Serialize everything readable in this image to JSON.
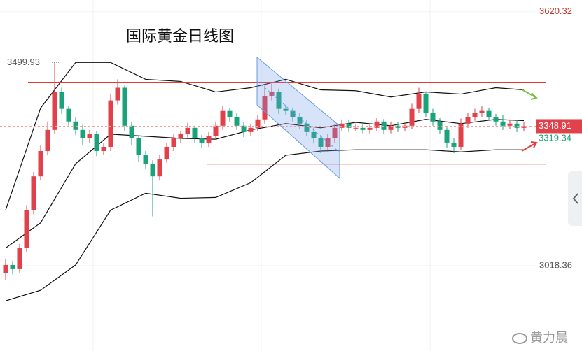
{
  "chart_data": {
    "type": "candlestick",
    "title": "国际黄金日线图",
    "open": [
      3000,
      3020,
      3010,
      3060,
      3150,
      3230,
      3290,
      3340,
      3430,
      3390,
      3360,
      3340,
      3320,
      3330,
      3290,
      3300,
      3410,
      3440,
      3350,
      3320,
      3280,
      3260,
      3230,
      3270,
      3300,
      3320,
      3330,
      3345,
      3320,
      3310,
      3325,
      3350,
      3385,
      3370,
      3350,
      3335,
      3345,
      3365,
      3420,
      3430,
      3390,
      3385,
      3370,
      3355,
      3335,
      3320,
      3300,
      3320,
      3345,
      3355,
      3345,
      3345,
      3340,
      3345,
      3360,
      3340,
      3350,
      3345,
      3350,
      3390,
      3425,
      3380,
      3360,
      3340,
      3310,
      3300,
      3355,
      3370,
      3380,
      3385,
      3370,
      3360,
      3350,
      3355,
      3345
    ],
    "high": [
      3035,
      3030,
      3070,
      3162,
      3240,
      3305,
      3360,
      3499.93,
      3440,
      3398,
      3370,
      3352,
      3340,
      3338,
      3310,
      3425,
      3460,
      3445,
      3360,
      3328,
      3290,
      3268,
      3282,
      3310,
      3330,
      3338,
      3357,
      3350,
      3328,
      3335,
      3360,
      3397,
      3393,
      3380,
      3358,
      3355,
      3375,
      3445,
      3450,
      3438,
      3400,
      3393,
      3380,
      3363,
      3345,
      3328,
      3330,
      3355,
      3365,
      3363,
      3355,
      3353,
      3355,
      3368,
      3366,
      3360,
      3358,
      3358,
      3402,
      3440,
      3430,
      3390,
      3368,
      3346,
      3320,
      3367,
      3380,
      3390,
      3397,
      3393,
      3378,
      3375,
      3365,
      3363,
      3359
    ],
    "low": [
      2985,
      2998,
      3002,
      3050,
      3140,
      3222,
      3280,
      3330,
      3378,
      3350,
      3328,
      3305,
      3310,
      3278,
      3280,
      3290,
      3400,
      3338,
      3305,
      3265,
      3248,
      3135,
      3220,
      3262,
      3290,
      3310,
      3322,
      3310,
      3298,
      3300,
      3317,
      3340,
      3360,
      3340,
      3323,
      3327,
      3337,
      3355,
      3410,
      3378,
      3375,
      3360,
      3343,
      3325,
      3308,
      3285,
      3288,
      3310,
      3337,
      3335,
      3337,
      3332,
      3330,
      3337,
      3330,
      3332,
      3335,
      3337,
      3342,
      3380,
      3370,
      3350,
      3330,
      3298,
      3285,
      3292,
      3345,
      3362,
      3370,
      3362,
      3350,
      3340,
      3342,
      3335,
      3337
    ],
    "close": [
      3020,
      3010,
      3060,
      3150,
      3230,
      3290,
      3340,
      3430,
      3390,
      3360,
      3340,
      3320,
      3330,
      3290,
      3300,
      3410,
      3440,
      3350,
      3320,
      3280,
      3260,
      3230,
      3270,
      3300,
      3320,
      3330,
      3345,
      3320,
      3310,
      3325,
      3350,
      3385,
      3370,
      3350,
      3335,
      3345,
      3365,
      3420,
      3430,
      3390,
      3385,
      3370,
      3355,
      3335,
      3320,
      3300,
      3320,
      3345,
      3355,
      3345,
      3345,
      3340,
      3345,
      3360,
      3340,
      3350,
      3345,
      3350,
      3390,
      3425,
      3380,
      3360,
      3340,
      3310,
      3300,
      3355,
      3370,
      3380,
      3385,
      3370,
      3360,
      3350,
      3355,
      3345,
      3348.91
    ],
    "up_color": "#e0414b",
    "down_color": "#1aa37a",
    "ylim": [
      2816,
      3648
    ],
    "yticks": [
      3620.32,
      3018.36
    ],
    "bands": [
      {
        "color": "#111111",
        "x": [
          0,
          5,
          10,
          15,
          20,
          25,
          30,
          35,
          40,
          45,
          50,
          55,
          60,
          65,
          70,
          74
        ],
        "values": [
          3150,
          3392,
          3500,
          3500,
          3460,
          3455,
          3430,
          3440,
          3460,
          3435,
          3433,
          3418,
          3430,
          3425,
          3440,
          3435
        ]
      },
      {
        "color": "#111111",
        "x": [
          0,
          5,
          10,
          15,
          20,
          25,
          30,
          35,
          40,
          45,
          50,
          55,
          60,
          65,
          70,
          74
        ],
        "values": [
          3060,
          3120,
          3260,
          3330,
          3325,
          3320,
          3318,
          3340,
          3355,
          3345,
          3358,
          3350,
          3365,
          3355,
          3365,
          3362
        ]
      },
      {
        "color": "#111111",
        "x": [
          0,
          5,
          10,
          15,
          20,
          25,
          30,
          35,
          40,
          45,
          50,
          55,
          60,
          65,
          70,
          74
        ],
        "values": [
          2935,
          2960,
          3020,
          3150,
          3190,
          3178,
          3180,
          3215,
          3280,
          3290,
          3293,
          3293,
          3293,
          3288,
          3293,
          3293
        ]
      }
    ],
    "levels": {
      "color": "#e53935",
      "values": [
        3453,
        3259
      ]
    },
    "high_label": 3499.93,
    "last_price": 3348.91,
    "support_price": 3319.34,
    "watermark": "黄力晨"
  }
}
